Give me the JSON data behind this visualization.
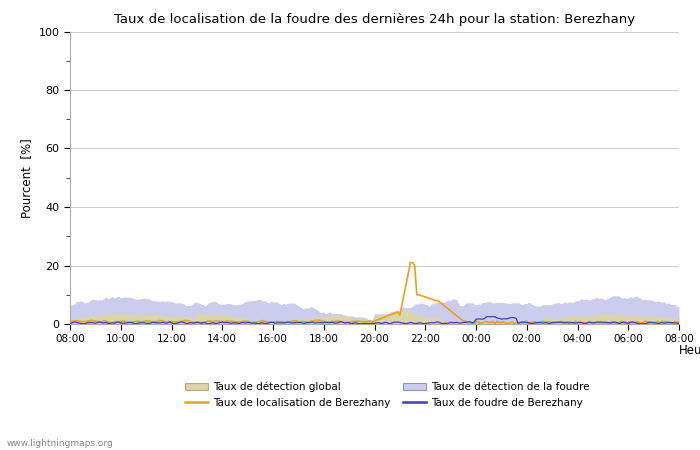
{
  "title": "Taux de localisation de la foudre des dernières 24h pour la station: Berezhany",
  "xlabel": "Heure",
  "ylabel": "Pourcent  [%]",
  "watermark": "www.lightningmaps.org",
  "ylim": [
    0,
    100
  ],
  "yticks": [
    0,
    20,
    40,
    60,
    80,
    100
  ],
  "yticks_minor": [
    10,
    30,
    50,
    70,
    90
  ],
  "x_labels": [
    "08:00",
    "10:00",
    "12:00",
    "14:00",
    "16:00",
    "18:00",
    "20:00",
    "22:00",
    "00:00",
    "02:00",
    "04:00",
    "06:00",
    "08:00"
  ],
  "color_global_fill": "#ddd4aa",
  "color_foudre_fill": "#ccccee",
  "color_loc_line": "#e8a020",
  "color_foudre_berezhany_line": "#4040b0",
  "legend_labels": [
    "Taux de détection global",
    "Taux de localisation de Berezhany",
    "Taux de détection de la foudre",
    "Taux de foudre de Berezhany"
  ],
  "n_points": 289,
  "spike_hour": 13.5,
  "spike_peak": 21.0
}
